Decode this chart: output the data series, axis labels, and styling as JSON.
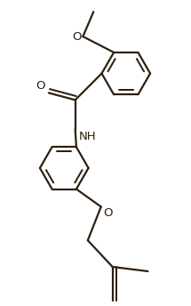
{
  "bg_color": "#ffffff",
  "line_color": "#2d2010",
  "line_width": 1.6,
  "font_size": 9.5,
  "figsize": [
    2.15,
    3.44
  ],
  "dpi": 100,
  "xlim": [
    0,
    2.15
  ],
  "ylim": [
    0,
    3.44
  ]
}
